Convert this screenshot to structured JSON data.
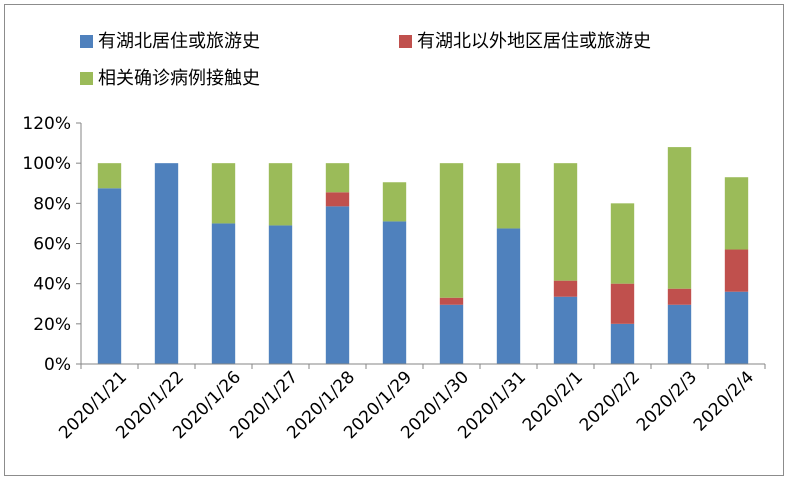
{
  "chart_data": {
    "type": "bar",
    "stacked": true,
    "title": "",
    "xlabel": "",
    "ylabel": "",
    "categories": [
      "2020/1/21",
      "2020/1/22",
      "2020/1/26",
      "2020/1/27",
      "2020/1/28",
      "2020/1/29",
      "2020/1/30",
      "2020/1/31",
      "2020/2/1",
      "2020/2/2",
      "2020/2/3",
      "2020/2/4"
    ],
    "series": [
      {
        "name": "有湖北居住或旅游史",
        "color": "#4f81bd",
        "values": [
          87.5,
          100,
          70,
          69,
          78.5,
          71,
          29.5,
          67.5,
          33.5,
          20,
          29.5,
          36
        ]
      },
      {
        "name": "有湖北以外地区居住或旅游史",
        "color": "#c0504d",
        "values": [
          0,
          0,
          0,
          0,
          7,
          0,
          3.5,
          0,
          8,
          20,
          8,
          21
        ]
      },
      {
        "name": "相关确诊病例接触史",
        "color": "#9bbb59",
        "values": [
          12.5,
          0,
          30,
          31,
          14.5,
          19.5,
          67,
          32.5,
          58.5,
          40,
          70.5,
          36
        ]
      }
    ],
    "ylim": [
      0,
      120
    ],
    "yticks": [
      0,
      20,
      40,
      60,
      80,
      100,
      120
    ],
    "ytick_labels": [
      "0%",
      "20%",
      "40%",
      "60%",
      "80%",
      "100%",
      "120%"
    ],
    "grid": false,
    "legend_position": "top"
  }
}
